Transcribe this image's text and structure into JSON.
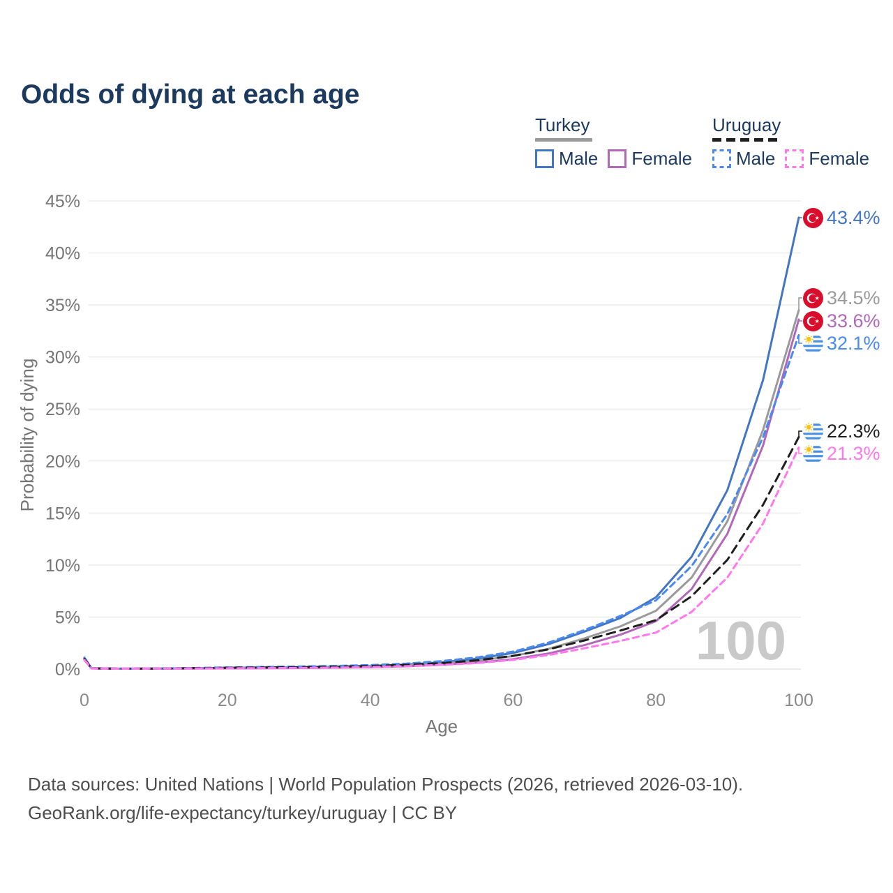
{
  "header": {
    "title": "Odds of dying at each age"
  },
  "legend": {
    "groups": [
      {
        "country": "Turkey",
        "line_style": "solid",
        "underline_color": "#9a9a9a",
        "items": [
          {
            "label": "Male",
            "color": "#4376C2",
            "dashed": false
          },
          {
            "label": "Female",
            "color": "#B168B8",
            "dashed": false
          }
        ]
      },
      {
        "country": "Uruguay",
        "line_style": "dashed",
        "underline_color": "#1e1e1e",
        "items": [
          {
            "label": "Male",
            "color": "#4989F0",
            "dashed": true
          },
          {
            "label": "Female",
            "color": "#FF78EC",
            "dashed": true
          }
        ]
      }
    ]
  },
  "chart_data": {
    "type": "line",
    "title": "Odds of dying at each age",
    "xlabel": "Age",
    "ylabel": "Probability of dying",
    "xlim": [
      0,
      100
    ],
    "ylim": [
      0,
      45
    ],
    "grid": "horizontal",
    "watermark": "100",
    "x_ticks": [
      "0",
      "20",
      "40",
      "60",
      "80",
      "100"
    ],
    "x_tick_values": [
      0,
      20,
      40,
      60,
      80,
      100
    ],
    "y_ticks": [
      "0%",
      "5%",
      "10%",
      "15%",
      "20%",
      "25%",
      "30%",
      "35%",
      "40%",
      "45%"
    ],
    "y_tick_values": [
      0,
      5,
      10,
      15,
      20,
      25,
      30,
      35,
      40,
      45
    ],
    "x": [
      0,
      1,
      5,
      10,
      15,
      20,
      25,
      30,
      35,
      40,
      45,
      50,
      55,
      60,
      65,
      70,
      75,
      80,
      85,
      90,
      95,
      100
    ],
    "series": [
      {
        "name": "Turkey Male",
        "color": "#4376C2",
        "dashed": false,
        "flag": "turkey",
        "end_label": "43.4%",
        "values": [
          1.05,
          0.08,
          0.04,
          0.05,
          0.08,
          0.12,
          0.14,
          0.17,
          0.21,
          0.28,
          0.42,
          0.65,
          1.0,
          1.55,
          2.4,
          3.6,
          4.9,
          6.9,
          10.8,
          17.2,
          27.8,
          43.4
        ]
      },
      {
        "name": "Turkey Both sexes",
        "color": "#9a9a9a",
        "dashed": false,
        "flag": "turkey",
        "end_label": "34.5%",
        "values": [
          0.95,
          0.07,
          0.035,
          0.045,
          0.065,
          0.09,
          0.11,
          0.14,
          0.17,
          0.23,
          0.34,
          0.52,
          0.8,
          1.25,
          1.95,
          2.95,
          4.1,
          5.6,
          8.8,
          14.2,
          23.0,
          34.5
        ]
      },
      {
        "name": "Turkey Female",
        "color": "#B168B8",
        "dashed": false,
        "flag": "turkey",
        "end_label": "33.6%",
        "values": [
          0.85,
          0.06,
          0.03,
          0.04,
          0.05,
          0.065,
          0.08,
          0.1,
          0.13,
          0.18,
          0.27,
          0.41,
          0.62,
          0.95,
          1.5,
          2.3,
          3.3,
          4.6,
          7.7,
          13.0,
          21.5,
          33.6
        ]
      },
      {
        "name": "Uruguay Male",
        "color": "#4989F0",
        "dashed": true,
        "flag": "uruguay",
        "end_label": "32.1%",
        "values": [
          1.1,
          0.08,
          0.04,
          0.05,
          0.1,
          0.16,
          0.2,
          0.24,
          0.3,
          0.38,
          0.52,
          0.76,
          1.12,
          1.68,
          2.55,
          3.75,
          5.1,
          6.6,
          9.9,
          14.9,
          22.3,
          32.1
        ]
      },
      {
        "name": "Uruguay Both sexes",
        "color": "#1e1e1e",
        "dashed": true,
        "flag": "uruguay",
        "end_label": "22.3%",
        "values": [
          0.98,
          0.07,
          0.035,
          0.045,
          0.08,
          0.12,
          0.15,
          0.18,
          0.22,
          0.29,
          0.4,
          0.57,
          0.84,
          1.27,
          1.9,
          2.75,
          3.7,
          4.7,
          7.0,
          10.5,
          15.8,
          22.3
        ]
      },
      {
        "name": "Uruguay Female",
        "color": "#FF78EC",
        "dashed": true,
        "flag": "uruguay",
        "end_label": "21.3%",
        "values": [
          0.88,
          0.06,
          0.03,
          0.04,
          0.055,
          0.075,
          0.09,
          0.11,
          0.14,
          0.19,
          0.28,
          0.4,
          0.58,
          0.88,
          1.35,
          2.0,
          2.7,
          3.5,
          5.5,
          8.8,
          14.0,
          21.3
        ]
      }
    ]
  },
  "footer": {
    "line1": "Data sources: United Nations | World Population Prospects (2026, retrieved 2026-03-10).",
    "line2": "GeoRank.org/life-expectancy/turkey/uruguay | CC BY"
  }
}
